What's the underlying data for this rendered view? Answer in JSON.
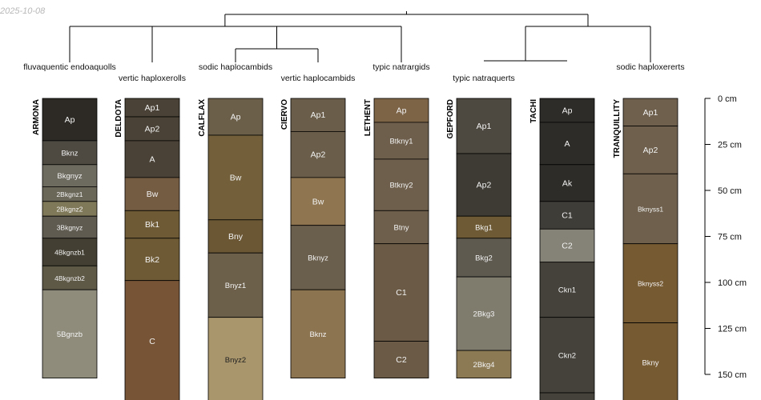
{
  "date_stamp": "2025-10-08",
  "chart_data": {
    "type": "soil-profile-sketch",
    "title": "",
    "depth_axis": {
      "unit": "cm",
      "ticks": [
        0,
        25,
        50,
        75,
        100,
        125,
        150
      ],
      "tick_labels": [
        "0 cm",
        "25 cm",
        "50 cm",
        "75 cm",
        "100 cm",
        "125 cm",
        "150 cm"
      ]
    },
    "dendrogram": {
      "merges": [
        [
          "ARMONA",
          "DELDOTA"
        ],
        [
          "CALFLAX",
          "CIERVO"
        ],
        [
          "CALFLAX|CIERVO",
          "LETHENT"
        ],
        [
          "GEPFORD",
          "TACHI"
        ],
        [
          "GEPFORD|TACHI",
          "TRANQUILLITY"
        ],
        [
          "ARMONA|DELDOTA",
          "CALFLAX|CIERVO|LETHENT"
        ],
        [
          "ALL_LEFT",
          "ALL_RIGHT"
        ]
      ]
    },
    "profiles": [
      {
        "name": "ARMONA",
        "taxon": "fluvaquentic endoaquolls",
        "horizons": [
          {
            "name": "Ap",
            "top": 0,
            "bottom": 23,
            "color": "#2d2a25"
          },
          {
            "name": "Bknz",
            "top": 23,
            "bottom": 36,
            "color": "#4e4a42"
          },
          {
            "name": "Bkgnyz",
            "top": 36,
            "bottom": 48,
            "color": "#6d6a5f"
          },
          {
            "name": "2Bkgnz1",
            "top": 48,
            "bottom": 56,
            "color": "#6a6658"
          },
          {
            "name": "2Bkgnz2",
            "top": 56,
            "bottom": 64,
            "color": "#807959"
          },
          {
            "name": "3Bkgnyz",
            "top": 64,
            "bottom": 76,
            "color": "#5f5b50"
          },
          {
            "name": "4Bkgnzb1",
            "top": 76,
            "bottom": 91,
            "color": "#433f33"
          },
          {
            "name": "4Bkgnzb2",
            "top": 91,
            "bottom": 104,
            "color": "#5e5846"
          },
          {
            "name": "5Bgnzb",
            "top": 104,
            "bottom": 152,
            "color": "#8f8c7c"
          }
        ]
      },
      {
        "name": "DELDOTA",
        "taxon": "vertic haploxerolls",
        "horizons": [
          {
            "name": "Ap1",
            "top": 0,
            "bottom": 10,
            "color": "#4a4236"
          },
          {
            "name": "Ap2",
            "top": 10,
            "bottom": 23,
            "color": "#4a4236"
          },
          {
            "name": "A",
            "top": 23,
            "bottom": 43,
            "color": "#4a4236"
          },
          {
            "name": "Bw",
            "top": 43,
            "bottom": 61,
            "color": "#745c42"
          },
          {
            "name": "Bk1",
            "top": 61,
            "bottom": 76,
            "color": "#6e5a34"
          },
          {
            "name": "Bk2",
            "top": 76,
            "bottom": 99,
            "color": "#6e5a34"
          },
          {
            "name": "C",
            "top": 99,
            "bottom": 165,
            "color": "#765435"
          }
        ]
      },
      {
        "name": "CALFLAX",
        "taxon": "sodic haplocambids",
        "horizons": [
          {
            "name": "Ap",
            "top": 0,
            "bottom": 20,
            "color": "#6b5f4a"
          },
          {
            "name": "Bw",
            "top": 20,
            "bottom": 66,
            "color": "#73603a"
          },
          {
            "name": "Bny",
            "top": 66,
            "bottom": 84,
            "color": "#6b5734"
          },
          {
            "name": "Bnyz1",
            "top": 84,
            "bottom": 119,
            "color": "#6d604b"
          },
          {
            "name": "Bnyz2",
            "top": 119,
            "bottom": 165,
            "color": "#a9966c"
          }
        ]
      },
      {
        "name": "CIERVO",
        "taxon": "vertic haplocambids",
        "horizons": [
          {
            "name": "Ap1",
            "top": 0,
            "bottom": 18,
            "color": "#6a5e4a"
          },
          {
            "name": "Ap2",
            "top": 18,
            "bottom": 43,
            "color": "#6a5e4a"
          },
          {
            "name": "Bw",
            "top": 43,
            "bottom": 69,
            "color": "#8f7651"
          },
          {
            "name": "Bknyz",
            "top": 69,
            "bottom": 104,
            "color": "#6a5e4c"
          },
          {
            "name": "Bknz",
            "top": 104,
            "bottom": 152,
            "color": "#8c7450"
          }
        ]
      },
      {
        "name": "LETHENT",
        "taxon": "typic natrargids",
        "horizons": [
          {
            "name": "Ap",
            "top": 0,
            "bottom": 13,
            "color": "#7d6447"
          },
          {
            "name": "Btkny1",
            "top": 13,
            "bottom": 33,
            "color": "#6e5f4c"
          },
          {
            "name": "Btkny2",
            "top": 33,
            "bottom": 61,
            "color": "#6e5f4c"
          },
          {
            "name": "Btny",
            "top": 61,
            "bottom": 79,
            "color": "#6e5f4c"
          },
          {
            "name": "C1",
            "top": 79,
            "bottom": 132,
            "color": "#6b5b46"
          },
          {
            "name": "C2",
            "top": 132,
            "bottom": 152,
            "color": "#6b5b46"
          }
        ]
      },
      {
        "name": "GEPFORD",
        "taxon": "typic natraquerts",
        "horizons": [
          {
            "name": "Ap1",
            "top": 0,
            "bottom": 30,
            "color": "#4d4840"
          },
          {
            "name": "Ap2",
            "top": 30,
            "bottom": 64,
            "color": "#3e3b34"
          },
          {
            "name": "Bkg1",
            "top": 64,
            "bottom": 76,
            "color": "#6e5b35"
          },
          {
            "name": "Bkg2",
            "top": 76,
            "bottom": 97,
            "color": "#5e5a50"
          },
          {
            "name": "2Bkg3",
            "top": 97,
            "bottom": 137,
            "color": "#7f7c6e"
          },
          {
            "name": "2Bkg4",
            "top": 137,
            "bottom": 152,
            "color": "#8c7a55"
          }
        ]
      },
      {
        "name": "TACHI",
        "taxon": "",
        "horizons": [
          {
            "name": "Ap",
            "top": 0,
            "bottom": 13,
            "color": "#2e2c28"
          },
          {
            "name": "A",
            "top": 13,
            "bottom": 36,
            "color": "#2e2c28"
          },
          {
            "name": "Ak",
            "top": 36,
            "bottom": 56,
            "color": "#2e2c28"
          },
          {
            "name": "C1",
            "top": 56,
            "bottom": 71,
            "color": "#3f3d38"
          },
          {
            "name": "C2",
            "top": 71,
            "bottom": 89,
            "color": "#858378"
          },
          {
            "name": "Ckn1",
            "top": 89,
            "bottom": 119,
            "color": "#45423b"
          },
          {
            "name": "Ckn2",
            "top": 119,
            "bottom": 160,
            "color": "#45423b"
          },
          {
            "name": "",
            "top": 160,
            "bottom": 165,
            "color": "#45423b"
          }
        ]
      },
      {
        "name": "TRANQUILLITY",
        "taxon": "sodic haploxererts",
        "horizons": [
          {
            "name": "Ap1",
            "top": 0,
            "bottom": 15,
            "color": "#6e604c"
          },
          {
            "name": "Ap2",
            "top": 15,
            "bottom": 41,
            "color": "#6e604c"
          },
          {
            "name": "Bknyss1",
            "top": 41,
            "bottom": 79,
            "color": "#6e604c"
          },
          {
            "name": "Bknyss2",
            "top": 79,
            "bottom": 122,
            "color": "#765a32"
          },
          {
            "name": "Bkny",
            "top": 122,
            "bottom": 165,
            "color": "#765a32"
          }
        ]
      }
    ]
  }
}
